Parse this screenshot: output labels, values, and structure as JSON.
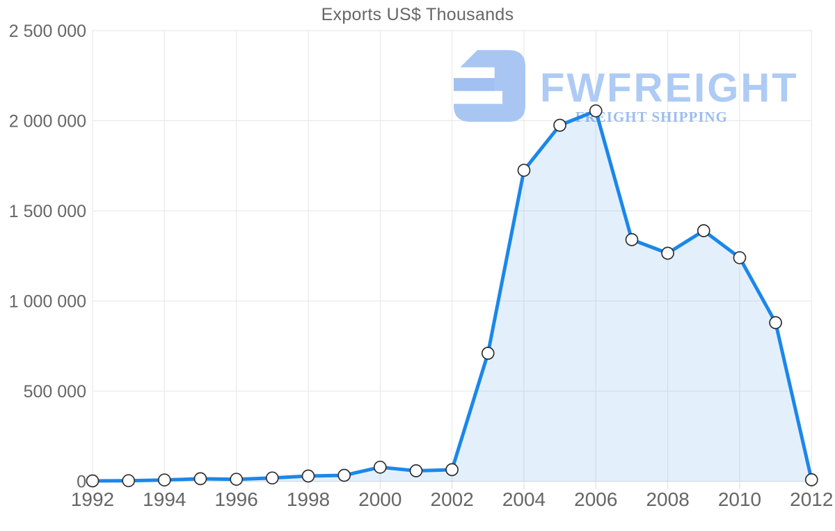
{
  "title": "Exports US$ Thousands",
  "watermark": {
    "brand": "FWFREIGHT",
    "tagline": "FREIGHT SHIPPING",
    "brand_color": "#aecbf5",
    "tagline_color": "#9cbdf1",
    "icon_color": "#a9c6f3"
  },
  "chart_data": {
    "type": "area",
    "title": "Exports US$ Thousands",
    "x": [
      1992,
      1993,
      1994,
      1995,
      1996,
      1997,
      1998,
      1999,
      2000,
      2001,
      2002,
      2003,
      2004,
      2005,
      2006,
      2007,
      2008,
      2009,
      2010,
      2011,
      2012
    ],
    "values": [
      2000,
      3000,
      7000,
      14000,
      11000,
      18000,
      29000,
      33000,
      78000,
      58000,
      64000,
      710000,
      1725000,
      1975000,
      2055000,
      1340000,
      1265000,
      1390000,
      1240000,
      880000,
      8000
    ],
    "series_name": "Exports US$ Thousands",
    "xlabel": "",
    "ylabel": "",
    "xtick_labels": [
      "1992",
      "1994",
      "1996",
      "1998",
      "2000",
      "2002",
      "2004",
      "2006",
      "2008",
      "2010",
      "2012"
    ],
    "xtick_years": [
      1992,
      1994,
      1996,
      1998,
      2000,
      2002,
      2004,
      2006,
      2008,
      2010,
      2012
    ],
    "ytick_labels": [
      "0",
      "500 000",
      "1 000 000",
      "1 500 000",
      "2 000 000",
      "2 500 000"
    ],
    "ytick_values": [
      0,
      500000,
      1000000,
      1500000,
      2000000,
      2500000
    ],
    "xlim": [
      1992,
      2012
    ],
    "ylim": [
      0,
      2500000
    ],
    "grid": true,
    "legend": "none",
    "line_color": "#1b87ea",
    "fill_color": "rgba(27,135,234,0.12)",
    "marker_fill": "#ffffff",
    "marker_stroke": "#2f2f2f",
    "grid_color": "#e6e6e6",
    "baseline_color": "#d9d9d9",
    "axis_label_color": "#666666",
    "title_color": "#666666"
  }
}
